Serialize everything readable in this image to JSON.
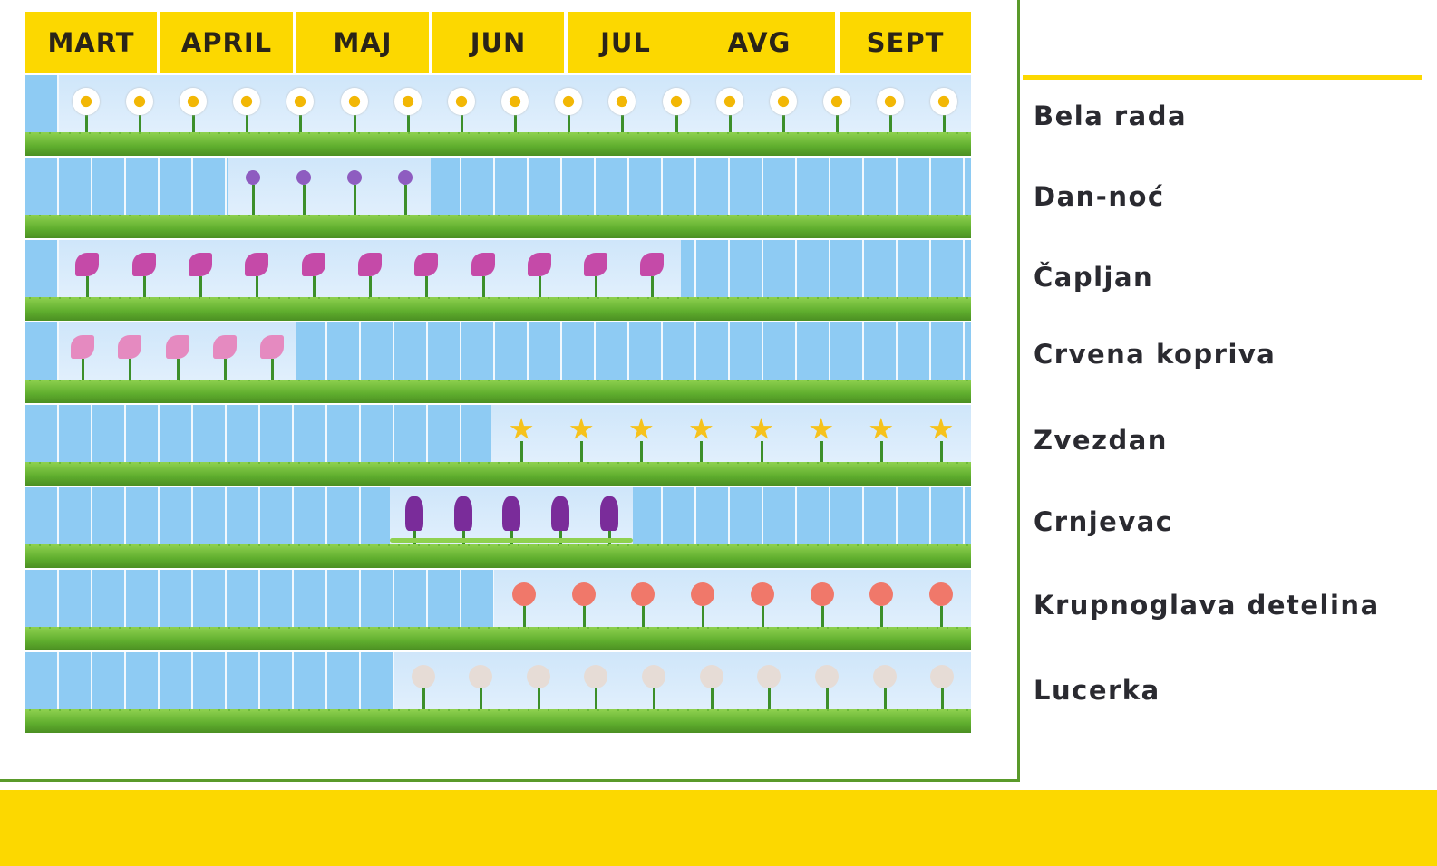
{
  "months": [
    "MART",
    "APRIL",
    "MAJ",
    "JUN",
    "JUL",
    "AVG",
    "SEPT"
  ],
  "chart_data": {
    "type": "gantt",
    "x_axis": {
      "categories": [
        "MART",
        "APRIL",
        "MAJ",
        "JUN",
        "JUL",
        "AVG",
        "SEPT"
      ],
      "range_months": [
        3,
        10
      ]
    },
    "series": [
      {
        "name": "Bela rada",
        "start_month": 3.25,
        "end_month": 10.0,
        "flower_color": "#ffffff",
        "center_color": "#f2b705"
      },
      {
        "name": "Dan-noć",
        "start_month": 4.5,
        "end_month": 6.0,
        "flower_color": "#8e5cc0"
      },
      {
        "name": "Čapljan",
        "start_month": 3.25,
        "end_month": 7.85,
        "flower_color": "#c54aa8"
      },
      {
        "name": "Crvena kopriva",
        "start_month": 3.25,
        "end_month": 5.0,
        "flower_color": "#e58ac0"
      },
      {
        "name": "Zvezdan",
        "start_month": 6.45,
        "end_month": 10.0,
        "flower_color": "#f6c21c"
      },
      {
        "name": "Crnjevac",
        "start_month": 5.7,
        "end_month": 7.5,
        "flower_color": "#7a2c9a"
      },
      {
        "name": "Krupnoglava detelina",
        "start_month": 6.47,
        "end_month": 10.0,
        "flower_color": "#f0786a"
      },
      {
        "name": "Lucerka",
        "start_month": 5.73,
        "end_month": 10.0,
        "flower_color": "#e6dcd6"
      }
    ]
  },
  "colors": {
    "accent_yellow": "#fcd800",
    "border_green": "#5a9a2a",
    "sky_blue": "#8ecbf3",
    "grass_green": "#5fae2e"
  }
}
